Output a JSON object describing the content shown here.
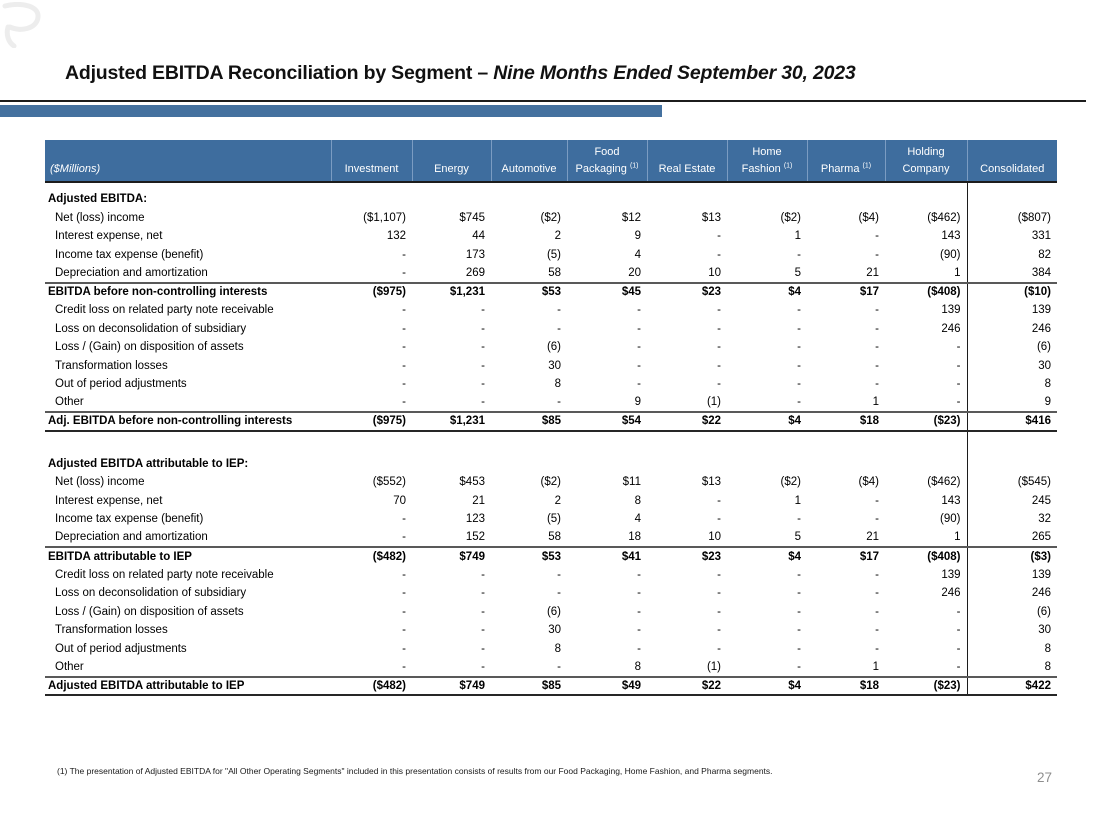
{
  "page": {
    "title_main": "Adjusted EBITDA Reconciliation by Segment – ",
    "title_italic": "Nine Months Ended September 30, 2023",
    "footnote": "(1) The presentation of Adjusted EBITDA for \"All Other Operating Segments\" included in this presentation consists of results from our Food Packaging, Home Fashion, and Pharma segments.",
    "page_number": "27"
  },
  "colors": {
    "header_blue": "#3e6d9e",
    "header_separator_blue": "#7b9cc2",
    "accent_bar_blue": "#44719f",
    "line_black": "#1c1c1c",
    "page_number_gray": "#8e8e8e"
  },
  "table": {
    "unit_label": "($Millions)",
    "columns": [
      {
        "lines": [
          "Investment"
        ],
        "sup": ""
      },
      {
        "lines": [
          "Energy"
        ],
        "sup": ""
      },
      {
        "lines": [
          "Automotive"
        ],
        "sup": ""
      },
      {
        "lines": [
          "Food",
          "Packaging"
        ],
        "sup": "(1)"
      },
      {
        "lines": [
          "Real Estate"
        ],
        "sup": ""
      },
      {
        "lines": [
          "Home",
          "Fashion"
        ],
        "sup": "(1)"
      },
      {
        "lines": [
          "Pharma"
        ],
        "sup": "(1)"
      },
      {
        "lines": [
          "Holding",
          "Company"
        ],
        "sup": ""
      },
      {
        "lines": [
          "Consolidated"
        ],
        "sup": ""
      }
    ],
    "sections": [
      {
        "heading": "Adjusted EBITDA:",
        "rows": [
          {
            "label": "Net (loss) income",
            "style": "normal",
            "values": [
              "($1,107)",
              "$745",
              "($2)",
              "$12",
              "$13",
              "($2)",
              "($4)",
              "($462)",
              "($807)"
            ]
          },
          {
            "label": "Interest expense, net",
            "style": "normal",
            "values": [
              "132",
              "44",
              "2",
              "9",
              "-",
              "1",
              "-",
              "143",
              "331"
            ]
          },
          {
            "label": "Income tax expense (benefit)",
            "style": "normal",
            "values": [
              "-",
              "173",
              "(5)",
              "4",
              "-",
              "-",
              "-",
              "(90)",
              "82"
            ]
          },
          {
            "label": "Depreciation and amortization",
            "style": "normal",
            "values": [
              "-",
              "269",
              "58",
              "20",
              "10",
              "5",
              "21",
              "1",
              "384"
            ]
          },
          {
            "label": "EBITDA before non-controlling interests",
            "style": "total",
            "values": [
              "($975)",
              "$1,231",
              "$53",
              "$45",
              "$23",
              "$4",
              "$17",
              "($408)",
              "($10)"
            ]
          },
          {
            "label": "Credit loss on related party note receivable",
            "style": "normal",
            "values": [
              "-",
              "-",
              "-",
              "-",
              "-",
              "-",
              "-",
              "139",
              "139"
            ]
          },
          {
            "label": "Loss on deconsolidation of subsidiary",
            "style": "normal",
            "values": [
              "-",
              "-",
              "-",
              "-",
              "-",
              "-",
              "-",
              "246",
              "246"
            ]
          },
          {
            "label": "Loss / (Gain) on disposition of assets",
            "style": "normal",
            "values": [
              "-",
              "-",
              "(6)",
              "-",
              "-",
              "-",
              "-",
              "-",
              "(6)"
            ]
          },
          {
            "label": "Transformation losses",
            "style": "normal",
            "values": [
              "-",
              "-",
              "30",
              "-",
              "-",
              "-",
              "-",
              "-",
              "30"
            ]
          },
          {
            "label": "Out of period adjustments",
            "style": "normal",
            "values": [
              "-",
              "-",
              "8",
              "-",
              "-",
              "-",
              "-",
              "-",
              "8"
            ]
          },
          {
            "label": "Other",
            "style": "normal",
            "values": [
              "-",
              "-",
              "-",
              "9",
              "(1)",
              "-",
              "1",
              "-",
              "9"
            ]
          },
          {
            "label": "Adj. EBITDA before non-controlling interests",
            "style": "grand",
            "values": [
              "($975)",
              "$1,231",
              "$85",
              "$54",
              "$22",
              "$4",
              "$18",
              "($23)",
              "$416"
            ]
          }
        ]
      },
      {
        "heading": "Adjusted EBITDA attributable to IEP:",
        "rows": [
          {
            "label": "Net (loss) income",
            "style": "normal",
            "values": [
              "($552)",
              "$453",
              "($2)",
              "$11",
              "$13",
              "($2)",
              "($4)",
              "($462)",
              "($545)"
            ]
          },
          {
            "label": "Interest expense, net",
            "style": "normal",
            "values": [
              "70",
              "21",
              "2",
              "8",
              "-",
              "1",
              "-",
              "143",
              "245"
            ]
          },
          {
            "label": "Income tax expense (benefit)",
            "style": "normal",
            "values": [
              "-",
              "123",
              "(5)",
              "4",
              "-",
              "-",
              "-",
              "(90)",
              "32"
            ]
          },
          {
            "label": "Depreciation and amortization",
            "style": "normal",
            "values": [
              "-",
              "152",
              "58",
              "18",
              "10",
              "5",
              "21",
              "1",
              "265"
            ]
          },
          {
            "label": "EBITDA attributable to IEP",
            "style": "total",
            "values": [
              "($482)",
              "$749",
              "$53",
              "$41",
              "$23",
              "$4",
              "$17",
              "($408)",
              "($3)"
            ]
          },
          {
            "label": "Credit loss on related party note receivable",
            "style": "normal",
            "values": [
              "-",
              "-",
              "-",
              "-",
              "-",
              "-",
              "-",
              "139",
              "139"
            ]
          },
          {
            "label": "Loss on deconsolidation of subsidiary",
            "style": "normal",
            "values": [
              "-",
              "-",
              "-",
              "-",
              "-",
              "-",
              "-",
              "246",
              "246"
            ]
          },
          {
            "label": "Loss / (Gain) on disposition of assets",
            "style": "normal",
            "values": [
              "-",
              "-",
              "(6)",
              "-",
              "-",
              "-",
              "-",
              "-",
              "(6)"
            ]
          },
          {
            "label": "Transformation losses",
            "style": "normal",
            "values": [
              "-",
              "-",
              "30",
              "-",
              "-",
              "-",
              "-",
              "-",
              "30"
            ]
          },
          {
            "label": "Out of period adjustments",
            "style": "normal",
            "values": [
              "-",
              "-",
              "8",
              "-",
              "-",
              "-",
              "-",
              "-",
              "8"
            ]
          },
          {
            "label": "Other",
            "style": "normal",
            "values": [
              "-",
              "-",
              "-",
              "8",
              "(1)",
              "-",
              "1",
              "-",
              "8"
            ]
          },
          {
            "label": "Adjusted EBITDA attributable to IEP",
            "style": "grand",
            "values": [
              "($482)",
              "$749",
              "$85",
              "$49",
              "$22",
              "$4",
              "$18",
              "($23)",
              "$422"
            ]
          }
        ]
      }
    ]
  }
}
